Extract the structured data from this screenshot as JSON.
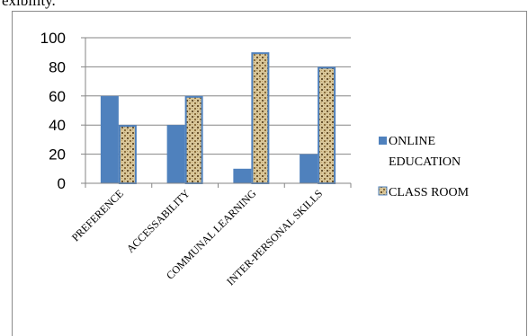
{
  "page": {
    "top_text": "exibility."
  },
  "colors": {
    "online": "#4f81bd",
    "classroom_border": "#4f81bd",
    "classroom_fill": "#d9c79a",
    "axis": "#868686"
  },
  "chart_data": {
    "type": "bar",
    "categories": [
      "PREFERENCE",
      "ACCESSABILITY",
      "COMMUNAL LEARNING",
      "INTER-PERSONAL SKILLS"
    ],
    "series": [
      {
        "name": "ONLINE EDUCATION",
        "values": [
          60,
          40,
          10,
          20
        ]
      },
      {
        "name": "CLASS ROOM",
        "values": [
          40,
          60,
          90,
          80
        ]
      }
    ],
    "yticks": [
      "0",
      "20",
      "40",
      "60",
      "80",
      "100"
    ],
    "ylim": [
      0,
      100
    ],
    "legend": {
      "position": "right",
      "items": [
        "ONLINE EDUCATION",
        "CLASS ROOM"
      ]
    }
  }
}
